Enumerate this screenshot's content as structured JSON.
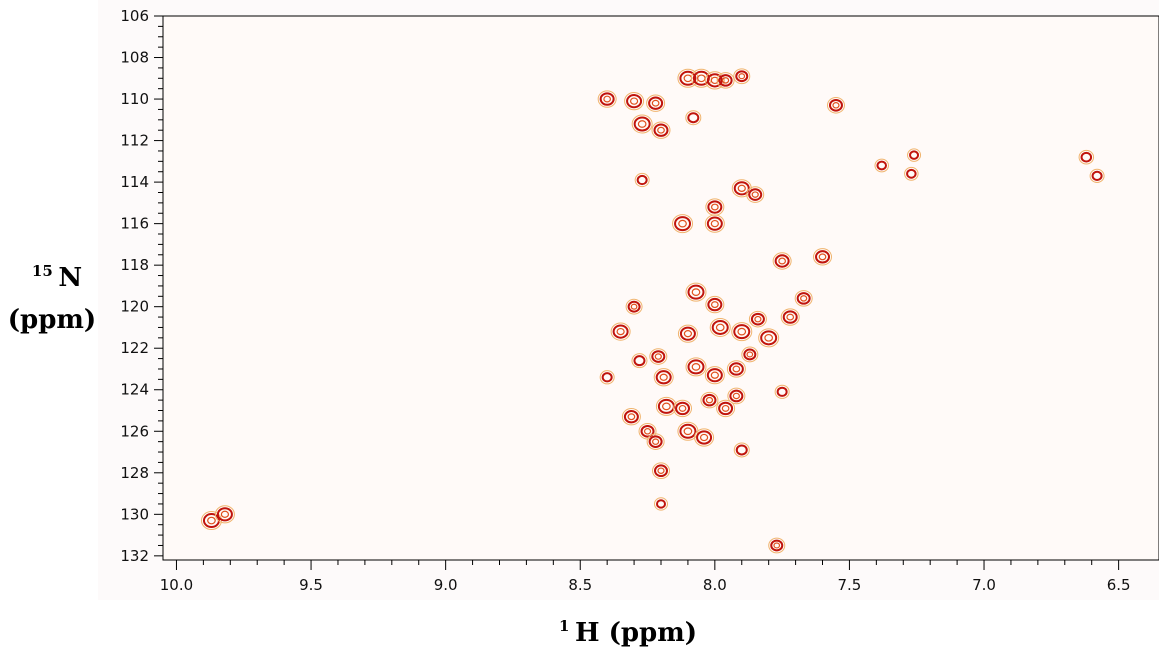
{
  "chart_data": {
    "type": "contour",
    "x_axis": {
      "title_sup": "1",
      "title_main": "H (ppm)",
      "range": [
        10.05,
        6.35
      ],
      "reversed": true,
      "ticks": [
        10.0,
        9.5,
        9.0,
        8.5,
        8.0,
        7.5,
        7.0,
        6.5
      ],
      "tick_labels": [
        "10.0",
        "9.5",
        "9.0",
        "8.5",
        "8.0",
        "7.5",
        "7.0",
        "6.5"
      ]
    },
    "y_axis": {
      "title_sup": "15",
      "title_main": "N",
      "title_unit": "(ppm)",
      "range": [
        106,
        132.2
      ],
      "reversed": true,
      "ticks": [
        106,
        108,
        110,
        112,
        114,
        116,
        118,
        120,
        122,
        124,
        126,
        128,
        130,
        132
      ],
      "tick_labels": [
        "106",
        "108",
        "110",
        "112",
        "114",
        "116",
        "118",
        "120",
        "122",
        "124",
        "126",
        "128",
        "130",
        "132"
      ]
    },
    "colors": {
      "plot_bg": "#fffaf8",
      "contour_dark": "#c0140c",
      "contour_mid": "#e0501c",
      "contour_light": "#f0b46e"
    },
    "series": [
      {
        "name": "",
        "peaks": [
          {
            "x": 9.87,
            "y": 130.3,
            "i": 1.0
          },
          {
            "x": 9.82,
            "y": 130.0,
            "i": 0.9
          },
          {
            "x": 8.4,
            "y": 110.0,
            "i": 0.8
          },
          {
            "x": 8.3,
            "y": 110.1,
            "i": 0.9
          },
          {
            "x": 8.27,
            "y": 111.2,
            "i": 1.0
          },
          {
            "x": 8.22,
            "y": 110.2,
            "i": 0.8
          },
          {
            "x": 8.2,
            "y": 111.5,
            "i": 0.8
          },
          {
            "x": 8.1,
            "y": 109.0,
            "i": 1.0
          },
          {
            "x": 8.05,
            "y": 109.0,
            "i": 1.0
          },
          {
            "x": 8.0,
            "y": 109.1,
            "i": 0.9
          },
          {
            "x": 7.96,
            "y": 109.1,
            "i": 0.7
          },
          {
            "x": 7.9,
            "y": 108.9,
            "i": 0.6
          },
          {
            "x": 8.08,
            "y": 110.9,
            "i": 0.5
          },
          {
            "x": 7.55,
            "y": 110.3,
            "i": 0.7
          },
          {
            "x": 8.27,
            "y": 113.9,
            "i": 0.4
          },
          {
            "x": 8.12,
            "y": 116.0,
            "i": 1.0
          },
          {
            "x": 8.0,
            "y": 116.0,
            "i": 0.9
          },
          {
            "x": 8.0,
            "y": 115.2,
            "i": 0.8
          },
          {
            "x": 7.9,
            "y": 114.3,
            "i": 0.9
          },
          {
            "x": 7.85,
            "y": 114.6,
            "i": 0.7
          },
          {
            "x": 7.75,
            "y": 117.8,
            "i": 0.8
          },
          {
            "x": 7.6,
            "y": 117.6,
            "i": 0.8
          },
          {
            "x": 8.07,
            "y": 119.3,
            "i": 1.0
          },
          {
            "x": 8.0,
            "y": 119.9,
            "i": 0.8
          },
          {
            "x": 7.67,
            "y": 119.6,
            "i": 0.7
          },
          {
            "x": 8.35,
            "y": 121.2,
            "i": 0.9
          },
          {
            "x": 8.3,
            "y": 120.0,
            "i": 0.6
          },
          {
            "x": 8.1,
            "y": 121.3,
            "i": 0.9
          },
          {
            "x": 7.98,
            "y": 121.0,
            "i": 1.0
          },
          {
            "x": 7.9,
            "y": 121.2,
            "i": 1.0
          },
          {
            "x": 7.8,
            "y": 121.5,
            "i": 1.0
          },
          {
            "x": 7.72,
            "y": 120.5,
            "i": 0.8
          },
          {
            "x": 7.84,
            "y": 120.6,
            "i": 0.7
          },
          {
            "x": 8.21,
            "y": 122.4,
            "i": 0.7
          },
          {
            "x": 8.07,
            "y": 122.9,
            "i": 1.0
          },
          {
            "x": 8.0,
            "y": 123.3,
            "i": 0.9
          },
          {
            "x": 7.92,
            "y": 123.0,
            "i": 0.8
          },
          {
            "x": 7.87,
            "y": 122.3,
            "i": 0.6
          },
          {
            "x": 8.19,
            "y": 123.4,
            "i": 0.9
          },
          {
            "x": 8.28,
            "y": 122.6,
            "i": 0.5
          },
          {
            "x": 8.31,
            "y": 125.3,
            "i": 0.8
          },
          {
            "x": 8.18,
            "y": 124.8,
            "i": 1.0
          },
          {
            "x": 8.12,
            "y": 124.9,
            "i": 0.8
          },
          {
            "x": 8.02,
            "y": 124.5,
            "i": 0.7
          },
          {
            "x": 7.96,
            "y": 124.9,
            "i": 0.8
          },
          {
            "x": 7.92,
            "y": 124.3,
            "i": 0.7
          },
          {
            "x": 8.25,
            "y": 126.0,
            "i": 0.7
          },
          {
            "x": 8.22,
            "y": 126.5,
            "i": 0.7
          },
          {
            "x": 8.1,
            "y": 126.0,
            "i": 1.0
          },
          {
            "x": 8.04,
            "y": 126.3,
            "i": 0.9
          },
          {
            "x": 7.9,
            "y": 126.9,
            "i": 0.5
          },
          {
            "x": 8.2,
            "y": 127.9,
            "i": 0.7
          },
          {
            "x": 7.75,
            "y": 124.1,
            "i": 0.4
          },
          {
            "x": 8.4,
            "y": 123.4,
            "i": 0.4
          },
          {
            "x": 8.2,
            "y": 129.5,
            "i": 0.3
          },
          {
            "x": 7.77,
            "y": 131.5,
            "i": 0.6
          },
          {
            "x": 7.38,
            "y": 113.2,
            "i": 0.35
          },
          {
            "x": 7.27,
            "y": 113.6,
            "i": 0.35
          },
          {
            "x": 7.26,
            "y": 112.7,
            "i": 0.3
          },
          {
            "x": 6.62,
            "y": 112.8,
            "i": 0.45
          },
          {
            "x": 6.58,
            "y": 113.7,
            "i": 0.4
          }
        ]
      }
    ]
  }
}
